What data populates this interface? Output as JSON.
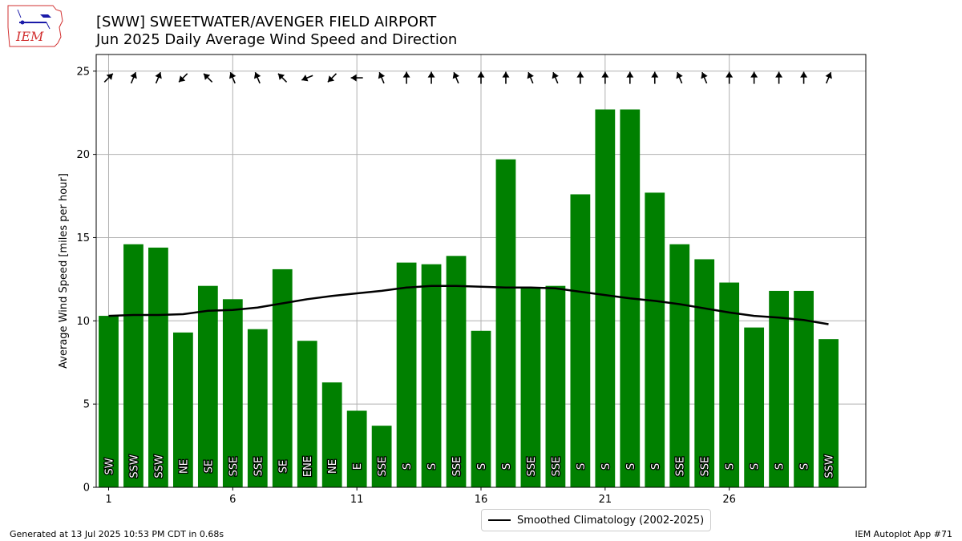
{
  "logo": {
    "text": "IEM"
  },
  "header": {
    "title": "[SWW] SWEETWATER/AVENGER FIELD AIRPORT",
    "subtitle": "Jun 2025 Daily Average Wind Speed and Direction"
  },
  "footer": {
    "left": "Generated at 13 Jul 2025 10:53 PM CDT in 0.68s",
    "right": "IEM Autoplot App #71"
  },
  "chart_data": {
    "type": "bar",
    "ylabel": "Average Wind Speed [miles per hour]",
    "xlabel": "",
    "xlim": [
      0.5,
      31.5
    ],
    "ylim": [
      0,
      26
    ],
    "xticks": [
      1,
      6,
      11,
      16,
      21,
      26
    ],
    "yticks": [
      0,
      5,
      10,
      15,
      20,
      25
    ],
    "grid": true,
    "legend_position": "bottom-center",
    "colors": {
      "bars": "#008000",
      "climatology": "#000000",
      "label_text": "#ffffff",
      "grid": "#b0b0b0"
    },
    "days": [
      1,
      2,
      3,
      4,
      5,
      6,
      7,
      8,
      9,
      10,
      11,
      12,
      13,
      14,
      15,
      16,
      17,
      18,
      19,
      20,
      21,
      22,
      23,
      24,
      25,
      26,
      27,
      28,
      29,
      30
    ],
    "values": [
      10.3,
      14.6,
      14.4,
      9.3,
      12.1,
      11.3,
      9.5,
      13.1,
      8.8,
      6.3,
      4.6,
      3.7,
      13.5,
      13.4,
      13.9,
      9.4,
      19.7,
      12.0,
      12.1,
      17.6,
      22.7,
      22.7,
      17.7,
      14.6,
      13.7,
      12.3,
      9.6,
      11.8,
      11.8,
      8.9
    ],
    "directions": [
      "SW",
      "SSW",
      "SSW",
      "NE",
      "SE",
      "SSE",
      "SSE",
      "SE",
      "ENE",
      "NE",
      "E",
      "SSE",
      "S",
      "S",
      "SSE",
      "S",
      "S",
      "SSE",
      "SSE",
      "S",
      "S",
      "S",
      "S",
      "SSE",
      "SSE",
      "S",
      "S",
      "S",
      "S",
      "SSW"
    ],
    "series": [
      {
        "name": "Smoothed Climatology (2002-2025)",
        "values": [
          10.3,
          10.35,
          10.35,
          10.4,
          10.6,
          10.65,
          10.8,
          11.05,
          11.3,
          11.5,
          11.65,
          11.8,
          12.0,
          12.1,
          12.1,
          12.05,
          12.0,
          12.0,
          11.95,
          11.75,
          11.55,
          11.35,
          11.2,
          11.0,
          10.75,
          10.5,
          10.3,
          10.2,
          10.05,
          9.8
        ]
      }
    ]
  }
}
